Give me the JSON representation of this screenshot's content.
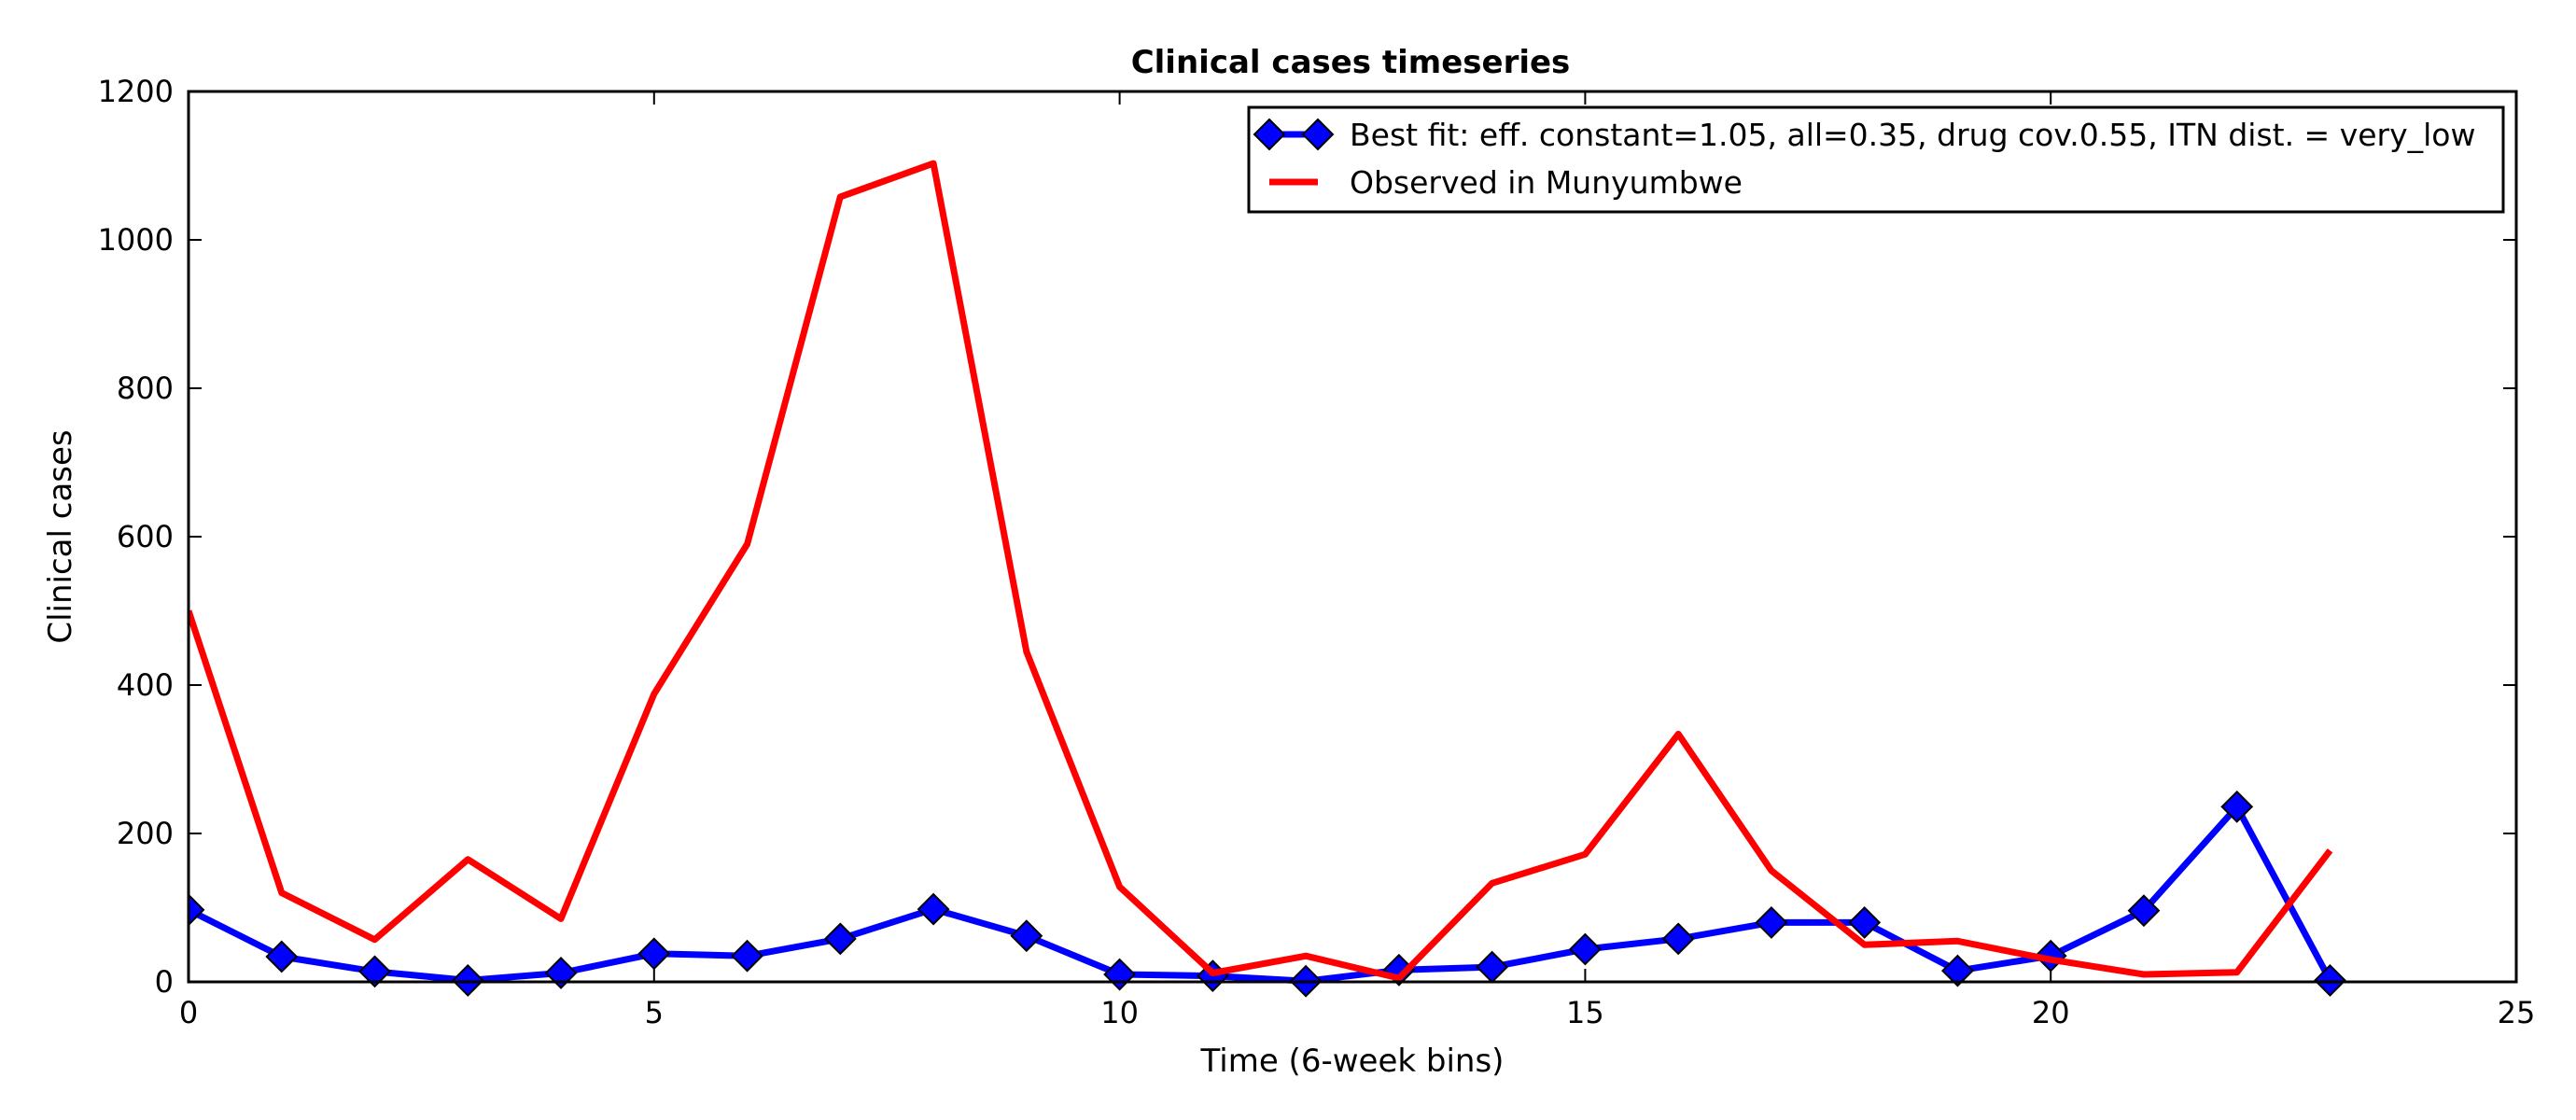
{
  "chart_data": {
    "type": "line",
    "title": "Clinical cases timeseries",
    "xlabel": "Time (6-week bins)",
    "ylabel": "Clinical cases",
    "xlim": [
      0,
      25
    ],
    "ylim": [
      0,
      1200
    ],
    "xticks": [
      0,
      5,
      10,
      15,
      20,
      25
    ],
    "yticks": [
      0,
      200,
      400,
      600,
      800,
      1000,
      1200
    ],
    "grid": false,
    "legend_position": "top-right",
    "series": [
      {
        "name": "Best fit: eff. constant=1.05, all=0.35, drug cov.0.55, ITN dist. = very_low",
        "color": "#0000ff",
        "marker": "diamond",
        "x": [
          0,
          1,
          2,
          3,
          4,
          5,
          6,
          7,
          8,
          9,
          10,
          11,
          12,
          13,
          14,
          15,
          16,
          17,
          18,
          19,
          20,
          21,
          22,
          23
        ],
        "values": [
          97,
          34,
          14,
          2,
          12,
          38,
          35,
          58,
          98,
          62,
          10,
          8,
          1,
          16,
          20,
          44,
          58,
          80,
          80,
          15,
          35,
          96,
          236,
          2
        ]
      },
      {
        "name": "Observed in Munyumbwe",
        "color": "#ff0000",
        "marker": "none",
        "x": [
          0,
          1,
          2,
          3,
          4,
          5,
          6,
          7,
          8,
          9,
          10,
          11,
          12,
          13,
          14,
          15,
          16,
          17,
          18,
          19,
          20,
          21,
          22,
          23
        ],
        "values": [
          500,
          120,
          57,
          165,
          85,
          388,
          590,
          1058,
          1103,
          445,
          128,
          12,
          35,
          5,
          133,
          172,
          334,
          150,
          50,
          55,
          30,
          10,
          13,
          177
        ]
      }
    ]
  }
}
